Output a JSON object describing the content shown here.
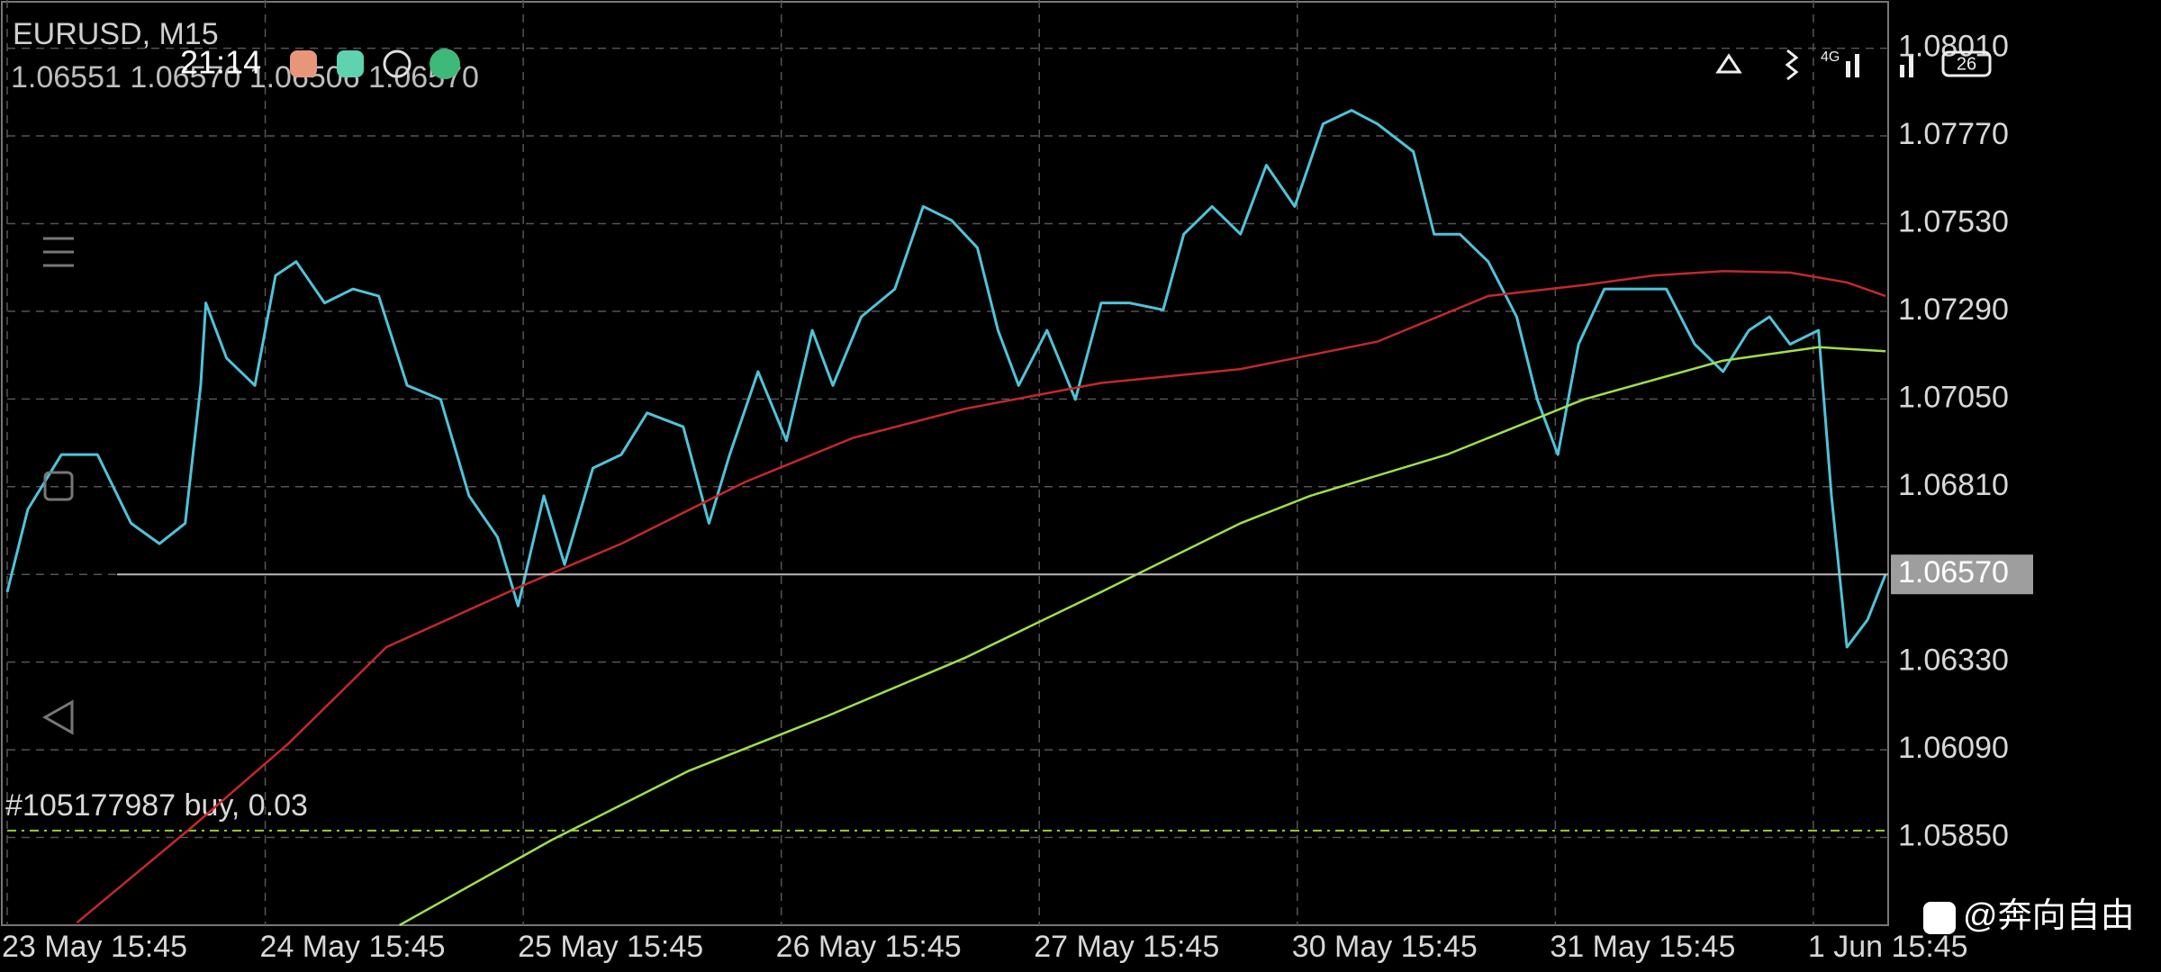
{
  "status_bar": {
    "time": "21:14",
    "network": "4G",
    "battery": "26"
  },
  "chart_data": {
    "type": "line",
    "title": "EURUSD, M15",
    "subtitle": "1.06551 1.06570 1.06506 1.06570",
    "xlim": [
      0,
      7.29
    ],
    "ylim": [
      1.0561,
      1.08142
    ],
    "xticks": [
      {
        "value": 0,
        "label": "23 May 15:45"
      },
      {
        "value": 1,
        "label": "24 May 15:45"
      },
      {
        "value": 2,
        "label": "25 May 15:45"
      },
      {
        "value": 3,
        "label": "26 May 15:45"
      },
      {
        "value": 4,
        "label": "27 May 15:45"
      },
      {
        "value": 5,
        "label": "30 May 15:45"
      },
      {
        "value": 6,
        "label": "31 May 15:45"
      },
      {
        "value": 7,
        "label": "1 Jun 15:45"
      }
    ],
    "yticks": [
      {
        "value": 1.0801,
        "label": "1.08010"
      },
      {
        "value": 1.0777,
        "label": "1.07770"
      },
      {
        "value": 1.0753,
        "label": "1.07530"
      },
      {
        "value": 1.0729,
        "label": "1.07290"
      },
      {
        "value": 1.0705,
        "label": "1.07050"
      },
      {
        "value": 1.0681,
        "label": "1.06810"
      },
      {
        "value": 1.0657,
        "label": "1.06570"
      },
      {
        "value": 1.0633,
        "label": "1.06330"
      },
      {
        "value": 1.0609,
        "label": "1.06090"
      },
      {
        "value": 1.0585,
        "label": "1.05850"
      }
    ],
    "grid": true,
    "current_price": {
      "value": 1.0657,
      "label": "1.06570"
    },
    "order": {
      "text": "#105177987 buy, 0.03",
      "value": 1.05869,
      "color": "#9acd32"
    },
    "series": [
      {
        "color": "#4fc3d9",
        "x": [
          0,
          0.08,
          0.21,
          0.35,
          0.48,
          0.59,
          0.69,
          0.75,
          0.77,
          0.85,
          0.96,
          1.04,
          1.12,
          1.23,
          1.34,
          1.44,
          1.55,
          1.68,
          1.79,
          1.9,
          1.98,
          2.08,
          2.16,
          2.27,
          2.38,
          2.48,
          2.62,
          2.72,
          2.8,
          2.91,
          3.02,
          3.12,
          3.2,
          3.31,
          3.44,
          3.55,
          3.66,
          3.76,
          3.84,
          3.92,
          4.03,
          4.14,
          4.24,
          4.35,
          4.48,
          4.56,
          4.67,
          4.78,
          4.88,
          4.99,
          5.1,
          5.21,
          5.31,
          5.45,
          5.53,
          5.63,
          5.74,
          5.85,
          5.93,
          6.01,
          6.09,
          6.19,
          6.3,
          6.43,
          6.54,
          6.65,
          6.75,
          6.83,
          6.91,
          7.02,
          7.07,
          7.13,
          7.21,
          7.28
        ],
        "values": [
          1.06522,
          1.06748,
          1.06898,
          1.06898,
          1.0671,
          1.06654,
          1.0671,
          1.07087,
          1.07313,
          1.07162,
          1.07087,
          1.07388,
          1.07426,
          1.07313,
          1.07351,
          1.07332,
          1.07087,
          1.07049,
          1.06785,
          1.06672,
          1.06484,
          1.06785,
          1.06597,
          1.06861,
          1.06898,
          1.07012,
          1.06974,
          1.0671,
          1.06898,
          1.07125,
          1.06936,
          1.07238,
          1.07087,
          1.07275,
          1.07351,
          1.07577,
          1.07539,
          1.07464,
          1.07238,
          1.07087,
          1.07238,
          1.07049,
          1.07313,
          1.07313,
          1.07294,
          1.07501,
          1.07577,
          1.07501,
          1.0769,
          1.07577,
          1.07803,
          1.0784,
          1.07803,
          1.07727,
          1.07501,
          1.07501,
          1.07426,
          1.07275,
          1.07049,
          1.06898,
          1.072,
          1.07351,
          1.07351,
          1.07351,
          1.072,
          1.07125,
          1.07238,
          1.07275,
          1.072,
          1.07238,
          1.06785,
          1.06371,
          1.06446,
          1.0657
        ]
      },
      {
        "color": "#c62828",
        "x": [
          0.27,
          0.72,
          1.09,
          1.47,
          2.0,
          2.38,
          2.86,
          3.28,
          3.71,
          4.24,
          4.78,
          5.31,
          5.74,
          6.11,
          6.38,
          6.65,
          6.91,
          7.13,
          7.28
        ],
        "values": [
          1.05617,
          1.05881,
          1.06107,
          1.06371,
          1.0654,
          1.06654,
          1.06823,
          1.06944,
          1.07023,
          1.07094,
          1.07132,
          1.07207,
          1.07332,
          1.07362,
          1.07388,
          1.074,
          1.07396,
          1.07369,
          1.07332
        ]
      },
      {
        "color": "#9ee04a",
        "x": [
          1.52,
          2.11,
          2.64,
          3.18,
          3.71,
          4.24,
          4.78,
          5.05,
          5.58,
          6.11,
          6.65,
          7.02,
          7.28
        ],
        "values": [
          1.0561,
          1.05843,
          1.06032,
          1.06183,
          1.06341,
          1.06522,
          1.0671,
          1.06785,
          1.06898,
          1.07049,
          1.07155,
          1.07192,
          1.07181
        ]
      }
    ]
  },
  "watermark": "@奔向自由"
}
